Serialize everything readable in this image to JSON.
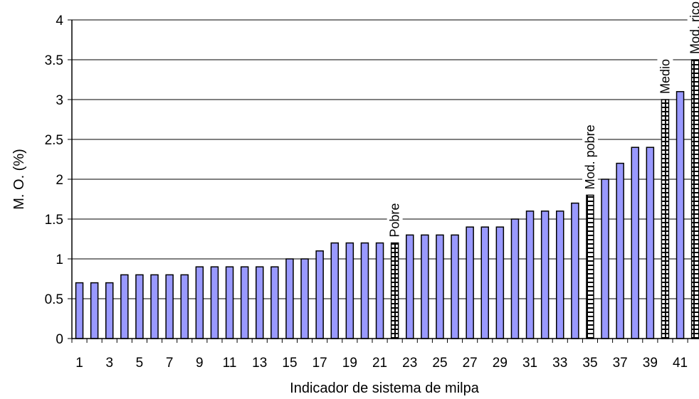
{
  "chart_data": {
    "type": "bar",
    "xlabel": "Indicador de sistema de milpa",
    "ylabel": "M. O. (%)",
    "ylim": [
      0,
      4
    ],
    "yticks": [
      "0",
      "0.5",
      "1",
      "1.5",
      "2",
      "2.5",
      "3",
      "3.5",
      "4"
    ],
    "grid": "horizontal",
    "categories": [
      "1",
      "2",
      "3",
      "4",
      "5",
      "6",
      "7",
      "8",
      "9",
      "10",
      "11",
      "12",
      "13",
      "14",
      "15",
      "16",
      "17",
      "18",
      "19",
      "20",
      "21",
      "22",
      "23",
      "24",
      "25",
      "26",
      "27",
      "28",
      "29",
      "30",
      "31",
      "32",
      "33",
      "34",
      "35",
      "36",
      "37",
      "38",
      "39",
      "40",
      "41",
      "42"
    ],
    "xtick_labels_shown": [
      "1",
      "3",
      "5",
      "7",
      "9",
      "11",
      "13",
      "15",
      "17",
      "19",
      "21",
      "23",
      "25",
      "27",
      "29",
      "31",
      "33",
      "35",
      "37",
      "39",
      "41"
    ],
    "values": [
      0.7,
      0.7,
      0.7,
      0.8,
      0.8,
      0.8,
      0.8,
      0.8,
      0.9,
      0.9,
      0.9,
      0.9,
      0.9,
      0.9,
      1.0,
      1.0,
      1.1,
      1.2,
      1.2,
      1.2,
      1.2,
      1.2,
      1.3,
      1.3,
      1.3,
      1.3,
      1.4,
      1.4,
      1.4,
      1.5,
      1.6,
      1.6,
      1.6,
      1.7,
      1.8,
      2.0,
      2.2,
      2.4,
      2.4,
      3.0,
      3.1,
      3.5
    ],
    "reference_bars": [
      {
        "index": 22,
        "label": "Pobre",
        "value": 1.2
      },
      {
        "index": 35,
        "label": "Mod. pobre",
        "value": 1.8
      },
      {
        "index": 40,
        "label": "Medio",
        "value": 3.0
      },
      {
        "index": 42,
        "label": "Mod. rico",
        "value": 3.5
      }
    ],
    "colors": {
      "bar": "#9999ff",
      "reference": "#ffffff",
      "stroke": "#000000"
    }
  }
}
